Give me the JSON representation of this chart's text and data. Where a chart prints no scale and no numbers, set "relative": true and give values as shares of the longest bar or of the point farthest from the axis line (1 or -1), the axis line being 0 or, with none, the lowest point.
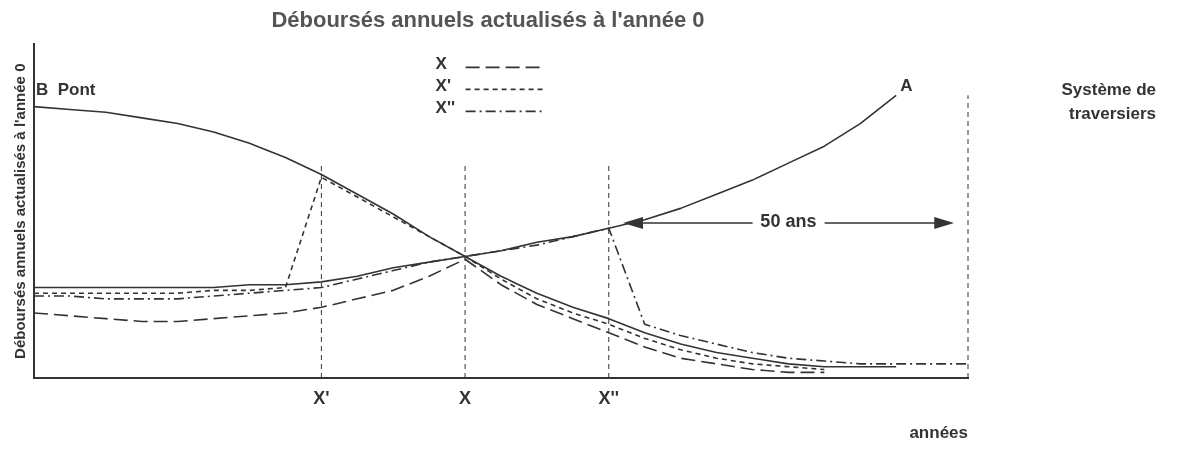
{
  "chart_data": {
    "type": "line",
    "title": "Déboursés annuels actualisés à l'année 0",
    "ylabel": "Déboursés annuels actualisés à l'année 0",
    "xlabel": "années",
    "relative": true,
    "categories": [
      null,
      null,
      null,
      null,
      null,
      null,
      null,
      null,
      "X'",
      null,
      null,
      null,
      "X",
      null,
      null,
      null,
      "X''",
      null,
      null,
      null,
      null,
      null,
      null,
      null,
      null,
      null,
      null
    ],
    "series": [
      {
        "name": "B  Pont",
        "color": "#333333",
        "line_style": "solid",
        "values": [
          0.96,
          0.95,
          0.94,
          0.92,
          0.9,
          0.87,
          0.83,
          0.78,
          0.72,
          0.65,
          0.58,
          0.5,
          0.43,
          0.36,
          0.3,
          0.25,
          0.21,
          0.16,
          0.12,
          0.09,
          0.07,
          0.05,
          0.04,
          0.04,
          0.04,
          null,
          null
        ]
      },
      {
        "name": "A",
        "color": "#333333",
        "line_style": "solid",
        "values": [
          0.32,
          0.32,
          0.32,
          0.32,
          0.32,
          0.32,
          0.33,
          0.33,
          0.34,
          0.36,
          0.39,
          0.41,
          0.43,
          0.45,
          0.48,
          0.5,
          0.53,
          0.56,
          0.6,
          0.65,
          0.7,
          0.76,
          0.82,
          0.9,
          1.0,
          null,
          null
        ]
      },
      {
        "name": "X",
        "color": "#333333",
        "line_style": "dashed",
        "values": [
          0.23,
          0.22,
          0.21,
          0.2,
          0.2,
          0.21,
          0.22,
          0.23,
          0.25,
          0.28,
          0.31,
          0.36,
          0.42,
          0.33,
          0.26,
          0.21,
          0.16,
          0.11,
          0.07,
          0.05,
          0.03,
          0.02,
          0.02,
          null,
          null,
          null,
          null
        ]
      },
      {
        "name": "X'",
        "color": "#333333",
        "line_style": "dotted",
        "values": [
          0.3,
          0.3,
          0.3,
          0.3,
          0.3,
          0.31,
          0.31,
          0.32,
          0.71,
          0.64,
          0.57,
          0.5,
          0.43,
          0.35,
          0.28,
          0.23,
          0.19,
          0.14,
          0.1,
          0.07,
          0.05,
          0.04,
          0.03,
          null,
          null,
          null,
          null
        ]
      },
      {
        "name": "X''",
        "color": "#333333",
        "line_style": "dashdot",
        "values": [
          0.29,
          0.29,
          0.28,
          0.28,
          0.28,
          0.29,
          0.3,
          0.31,
          0.32,
          0.35,
          0.38,
          0.41,
          0.43,
          0.45,
          0.47,
          0.5,
          0.53,
          0.19,
          0.15,
          0.12,
          0.09,
          0.07,
          0.06,
          0.05,
          0.05,
          0.05,
          0.05
        ]
      }
    ],
    "ref_lines": [
      {
        "axis": "x",
        "value": "X'",
        "label": null,
        "line_style": "dotted"
      },
      {
        "axis": "x",
        "value": "X",
        "label": null,
        "line_style": "dotted"
      },
      {
        "axis": "x",
        "value": "X''",
        "label": null,
        "line_style": "dotted"
      }
    ],
    "annotations": [
      "Système de traversiers",
      "50 ans"
    ],
    "legend": "top",
    "grid": false,
    "marker": "none"
  }
}
